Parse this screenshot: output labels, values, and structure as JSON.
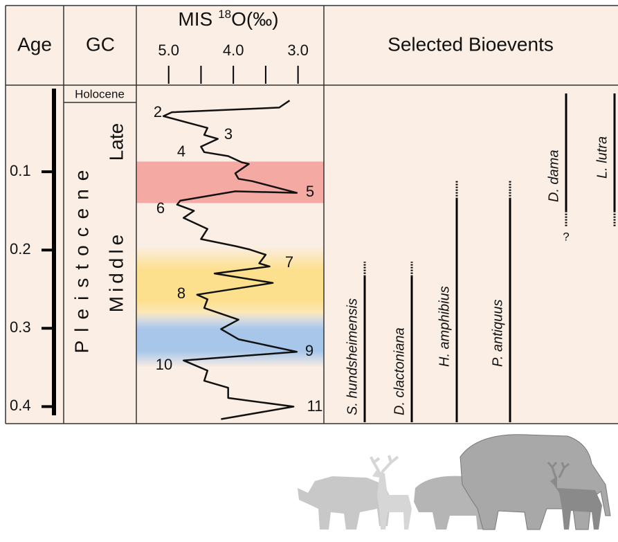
{
  "header": {
    "age": "Age",
    "gc": "GC",
    "mis_prefix": "MIS",
    "mis_sup": "18",
    "mis_suffix": "O(‰)",
    "bioevents": "Selected Bioevents"
  },
  "gc": {
    "holocene": "Holocene",
    "late": "Late",
    "pleistocene": "Pleistocene",
    "middle": "Middle"
  },
  "chart_data": {
    "type": "line",
    "x": [
      3.13,
      3.29,
      4.95,
      5.08,
      4.4,
      4.45,
      4.24,
      4.5,
      4.45,
      4.08,
      3.87,
      3.76,
      3.97,
      3.92,
      3.71,
      3.02,
      3.97,
      4.82,
      4.87,
      4.61,
      4.77,
      4.4,
      4.5,
      3.97,
      3.76,
      3.5,
      3.6,
      3.44,
      4.29,
      3.39,
      4.56,
      4.4,
      4.45,
      3.92,
      4.19,
      3.92,
      3.02,
      4.77,
      4.4,
      4.45,
      4.08,
      4.08,
      3.07,
      4.19
    ],
    "values": [
      0.009,
      0.018,
      0.024,
      0.029,
      0.044,
      0.053,
      0.058,
      0.068,
      0.075,
      0.08,
      0.088,
      0.09,
      0.102,
      0.109,
      0.112,
      0.127,
      0.125,
      0.137,
      0.142,
      0.15,
      0.159,
      0.173,
      0.186,
      0.195,
      0.199,
      0.206,
      0.217,
      0.221,
      0.23,
      0.242,
      0.257,
      0.263,
      0.274,
      0.289,
      0.301,
      0.314,
      0.33,
      0.341,
      0.354,
      0.367,
      0.376,
      0.389,
      0.4,
      0.416
    ],
    "color": "#111111",
    "xlim": [
      5.5,
      2.6
    ],
    "xticks": [
      {
        "value": 5,
        "label": "5.0"
      },
      4.5,
      {
        "value": 4,
        "label": "4.0"
      },
      3.5,
      {
        "value": 3,
        "label": "3.0"
      }
    ],
    "ylim": [
      0,
      0.42
    ],
    "yticks": [
      0.1,
      0.2,
      0.3,
      0.4
    ],
    "stage_labels": [
      "2",
      "3",
      "4",
      "5",
      "6",
      "7",
      "8",
      "9",
      "10",
      "11"
    ],
    "bands": [
      {
        "ymin": 0.087,
        "ymax": 0.14,
        "color": "#f4aaa2",
        "fade": false
      },
      {
        "ymin": 0.195,
        "ymax": 0.295,
        "color": "#fde08e",
        "fade": true
      },
      {
        "ymin": 0.28,
        "ymax": 0.35,
        "color": "#a7c6ea",
        "fade": true
      }
    ],
    "bioevents": [
      {
        "name": "S. hundsheimensis",
        "range": [
          0.42,
          0.234
        ],
        "uncertain": [
          0.234,
          0.215
        ]
      },
      {
        "name": "D. clactoniana",
        "range": [
          0.42,
          0.234
        ],
        "uncertain": [
          0.234,
          0.215
        ]
      },
      {
        "name": "H. amphibius",
        "range": [
          0.42,
          0.135
        ],
        "uncertain": [
          0.135,
          0.112
        ]
      },
      {
        "name": "P. antiquus",
        "range": [
          0.42,
          0.135
        ],
        "uncertain": [
          0.135,
          0.112
        ]
      },
      {
        "name": "D. dama",
        "range": [
          0,
          0.15
        ],
        "uncertain": [
          0.15,
          0.17
        ],
        "query": "?"
      },
      {
        "name": "L. lutra",
        "range": [
          0,
          0.15
        ],
        "uncertain": [
          0.15,
          0.17
        ]
      }
    ]
  }
}
